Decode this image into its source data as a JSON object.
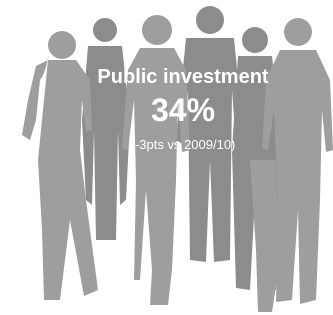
{
  "infographic": {
    "title": "Public investment",
    "value": "34%",
    "note": "(-3pts vs 2009/10)"
  }
}
